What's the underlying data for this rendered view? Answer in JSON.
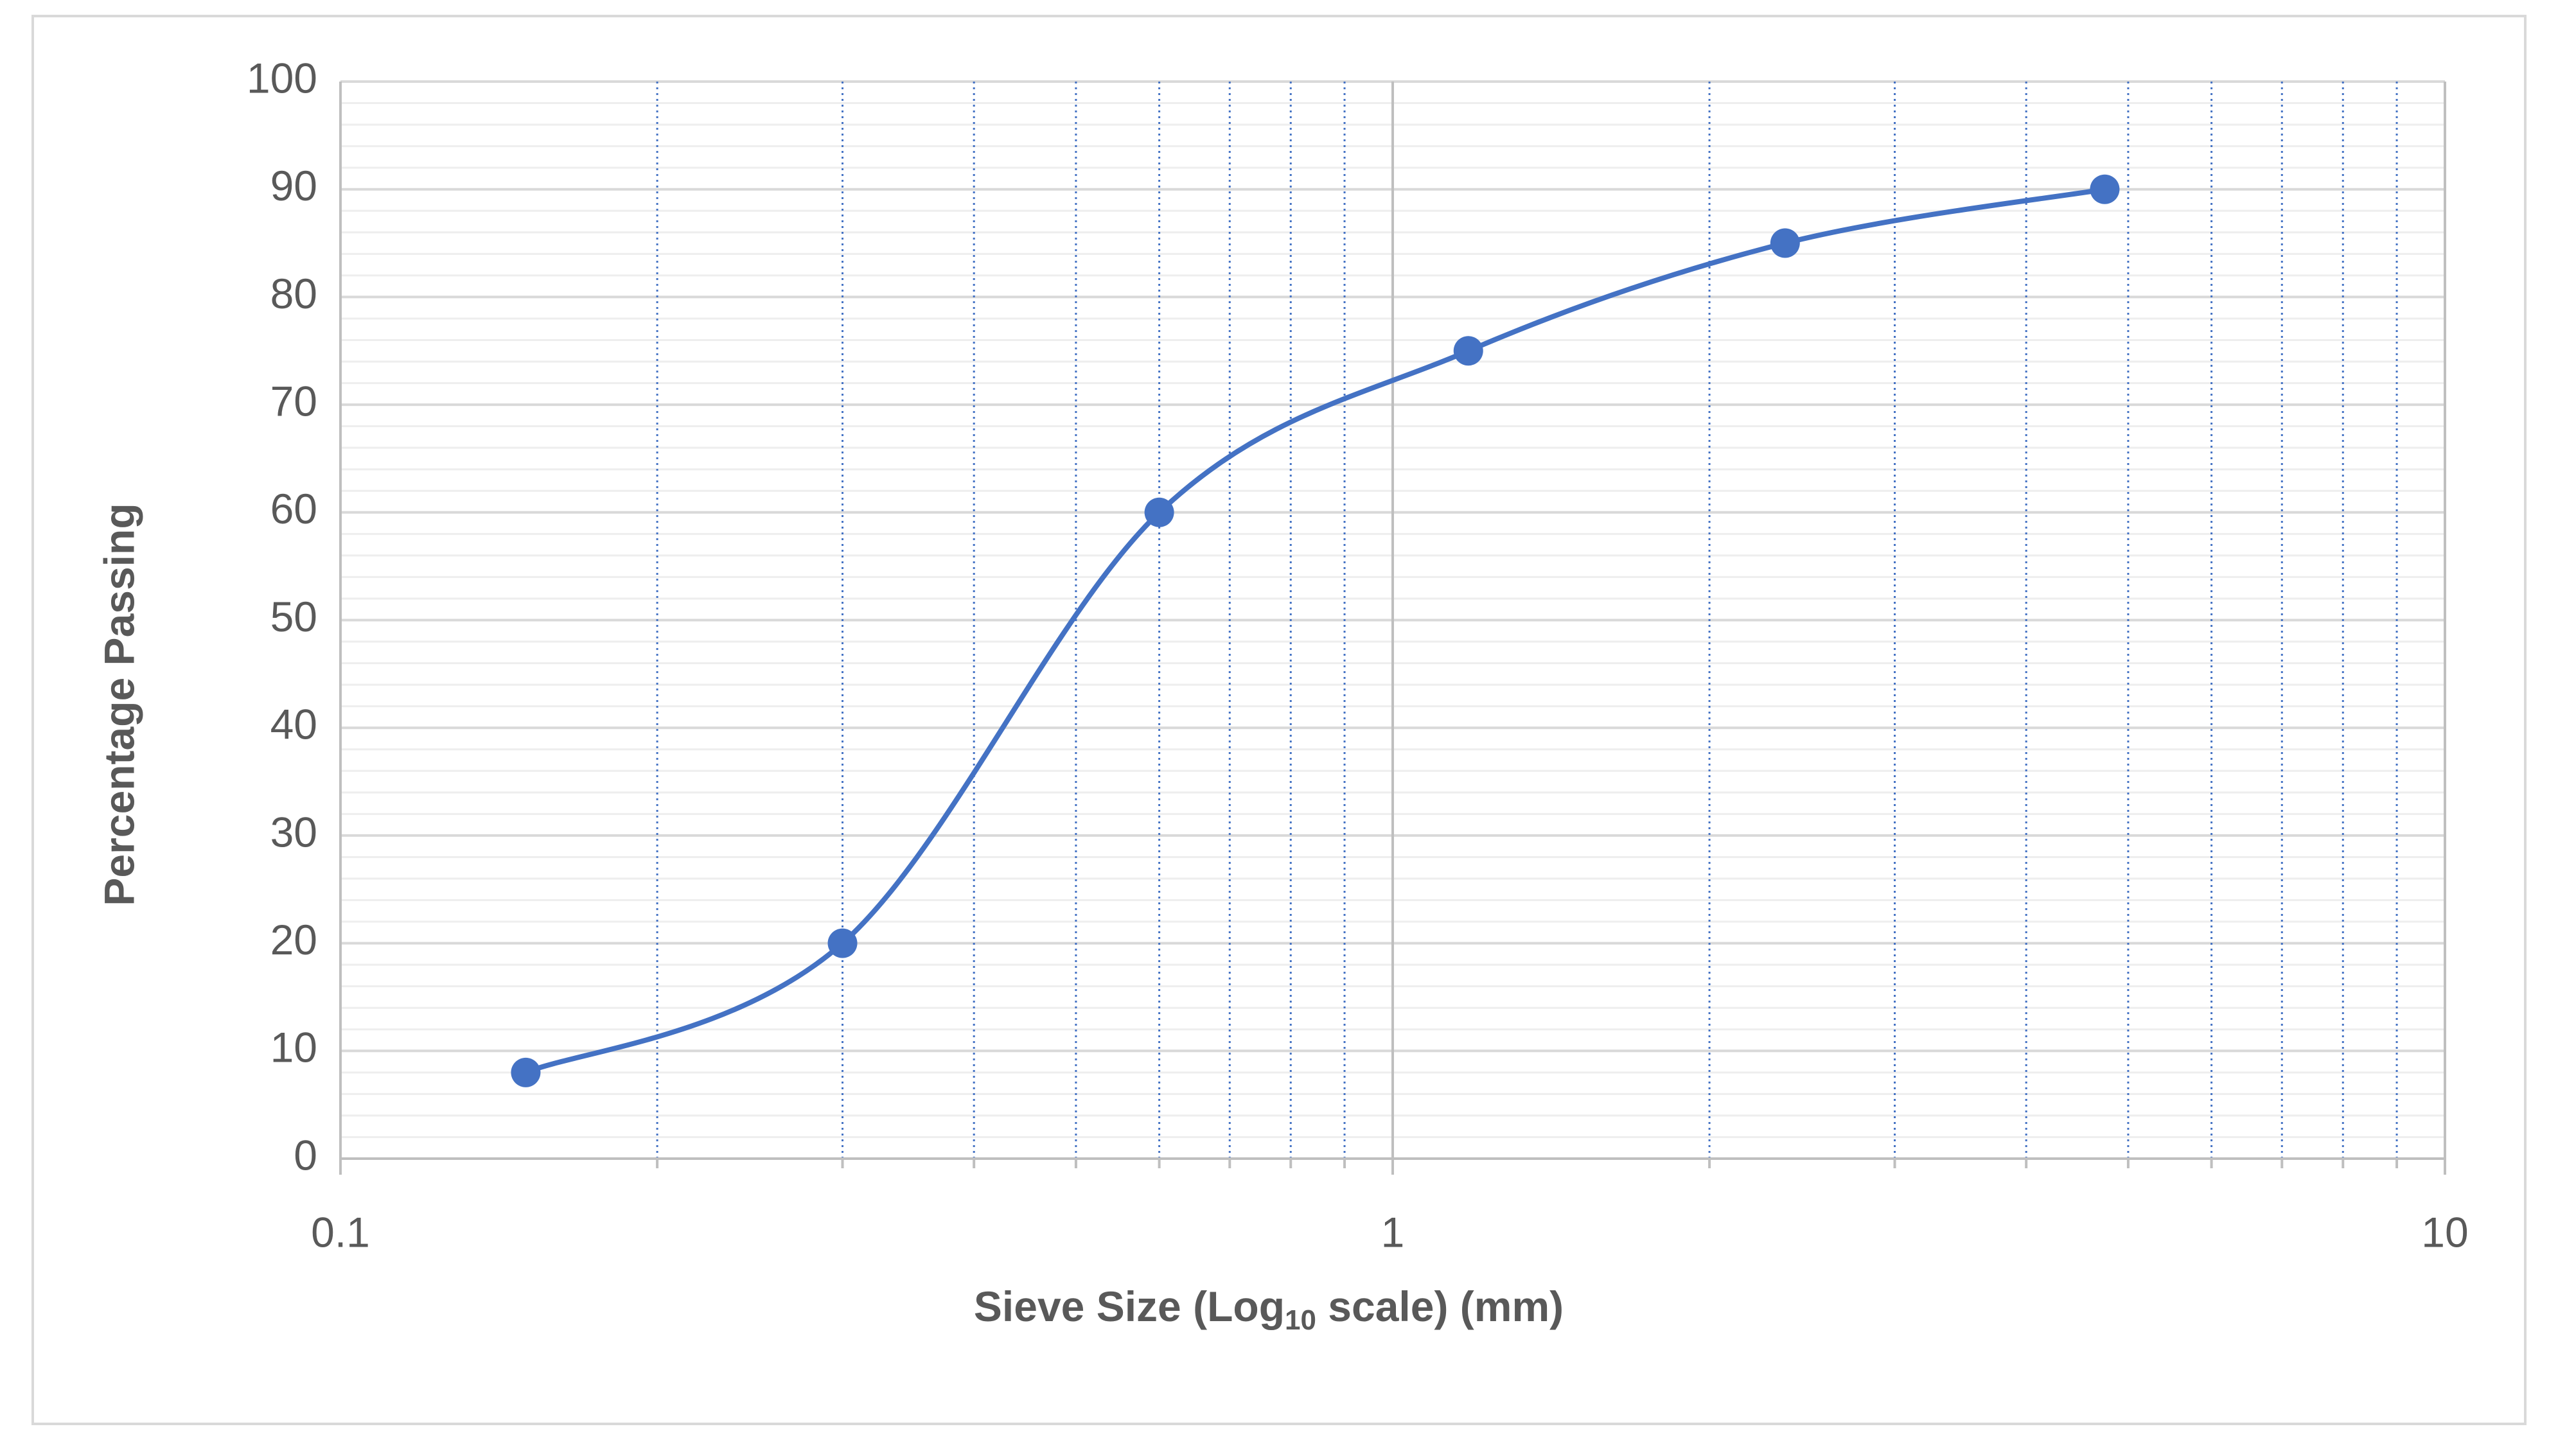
{
  "chart_data": {
    "type": "line",
    "x_label": {
      "before": "Sieve Size (Log",
      "sub": "10",
      "after": " scale) (mm)"
    },
    "y_label": "Percentage Passing",
    "x": [
      0.15,
      0.3,
      0.6,
      1.18,
      2.36,
      4.75
    ],
    "series": [
      {
        "color": "#4472c4",
        "values": [
          8,
          20,
          60,
          75,
          85,
          90
        ]
      }
    ],
    "smooth": true,
    "markers": true,
    "xscale": "log",
    "xlim": [
      0.1,
      10
    ],
    "xticks": [
      0.1,
      1,
      10
    ],
    "x_minor_grid": [
      0.2,
      0.3,
      0.4,
      0.5,
      0.6,
      0.7,
      0.8,
      0.9,
      2,
      3,
      4,
      5,
      6,
      7,
      8,
      9
    ],
    "ylim": [
      0,
      100
    ],
    "yticks": [
      0,
      10,
      20,
      30,
      40,
      50,
      60,
      70,
      80,
      90,
      100
    ],
    "y_minor_grid": [
      2,
      4,
      6,
      8,
      12,
      14,
      16,
      18,
      22,
      24,
      26,
      28,
      32,
      34,
      36,
      38,
      42,
      44,
      46,
      48,
      52,
      54,
      56,
      58,
      62,
      64,
      66,
      68,
      72,
      74,
      76,
      78,
      82,
      84,
      86,
      88,
      92,
      94,
      96,
      98
    ],
    "grid": true
  }
}
